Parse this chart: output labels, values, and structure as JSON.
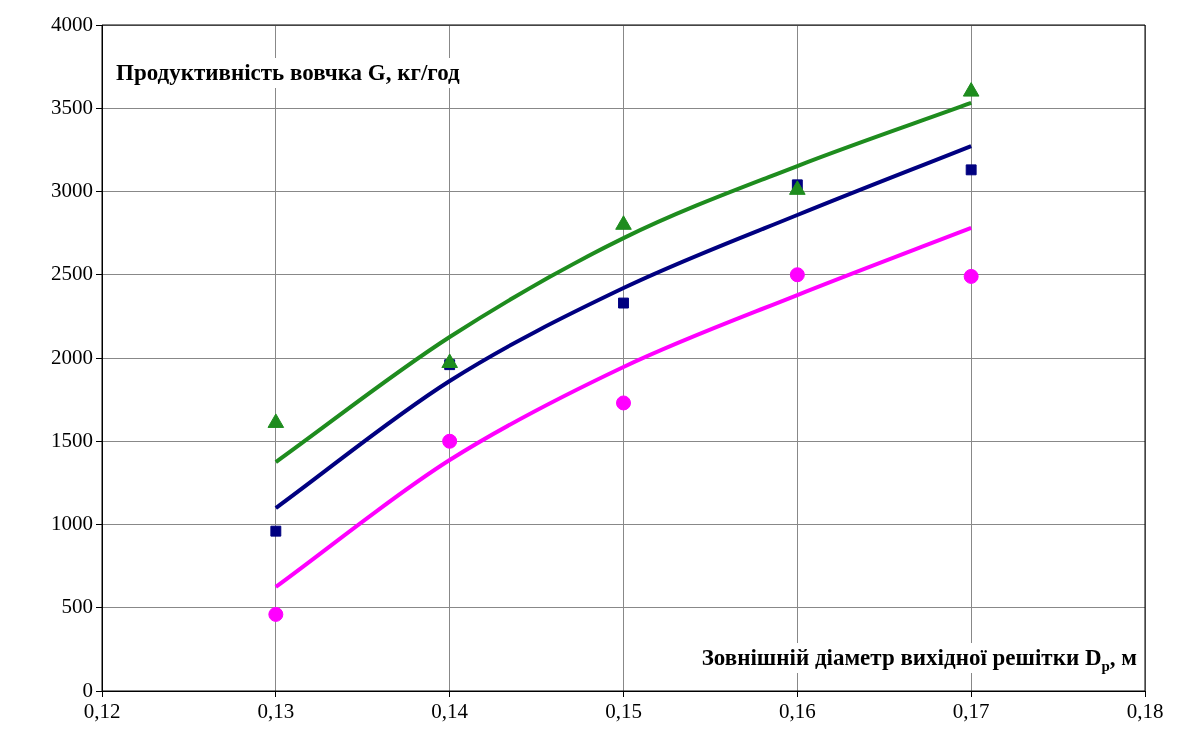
{
  "chart_data": {
    "type": "scatter",
    "ylabel": "Продуктивність вовчка G, кг/год",
    "xlabel": "Зовнішній діаметр вихідної решітки D$_{p}$, м",
    "xlim": [
      0.12,
      0.18
    ],
    "xticks": [
      {
        "value": 0.12,
        "label": "0,12"
      },
      {
        "value": 0.13,
        "label": "0,13"
      },
      {
        "value": 0.14,
        "label": "0,14"
      },
      {
        "value": 0.15,
        "label": "0,15"
      },
      {
        "value": 0.16,
        "label": "0,16"
      },
      {
        "value": 0.17,
        "label": "0,17"
      },
      {
        "value": 0.18,
        "label": "0,18"
      }
    ],
    "ylim": [
      0,
      4000
    ],
    "yticks": [
      0,
      500,
      1000,
      1500,
      2000,
      2500,
      3000,
      3500,
      4000
    ],
    "grid": true,
    "x": [
      0.13,
      0.14,
      0.15,
      0.16,
      0.17
    ],
    "series": [
      {
        "type": "line",
        "color": "#1e8c1e",
        "marker": "none",
        "x": [
          0.13,
          0.14,
          0.15,
          0.16,
          0.17
        ],
        "values": [
          1375,
          2126,
          2720,
          3153,
          3532
        ]
      },
      {
        "type": "line",
        "color": "#000080",
        "marker": "none",
        "x": [
          0.13,
          0.14,
          0.15,
          0.16,
          0.17
        ],
        "values": [
          1099,
          1862,
          2420,
          2859,
          3273
        ]
      },
      {
        "type": "line",
        "color": "#ff00ff",
        "marker": "none",
        "x": [
          0.13,
          0.14,
          0.15,
          0.16,
          0.17
        ],
        "values": [
          625,
          1387,
          1946,
          2378,
          2781
        ]
      },
      {
        "type": "scatter",
        "color": "#1e8c1e",
        "marker": "triangle",
        "values": [
          1610,
          1970,
          2800,
          3010,
          3600
        ]
      },
      {
        "type": "scatter",
        "color": "#ff00ff",
        "marker": "circle",
        "values": [
          460,
          1500,
          1730,
          2500,
          2490
        ]
      },
      {
        "type": "scatter",
        "color": "#000080",
        "marker": "square",
        "values": [
          960,
          1960,
          2330,
          3040,
          3130
        ]
      }
    ]
  }
}
